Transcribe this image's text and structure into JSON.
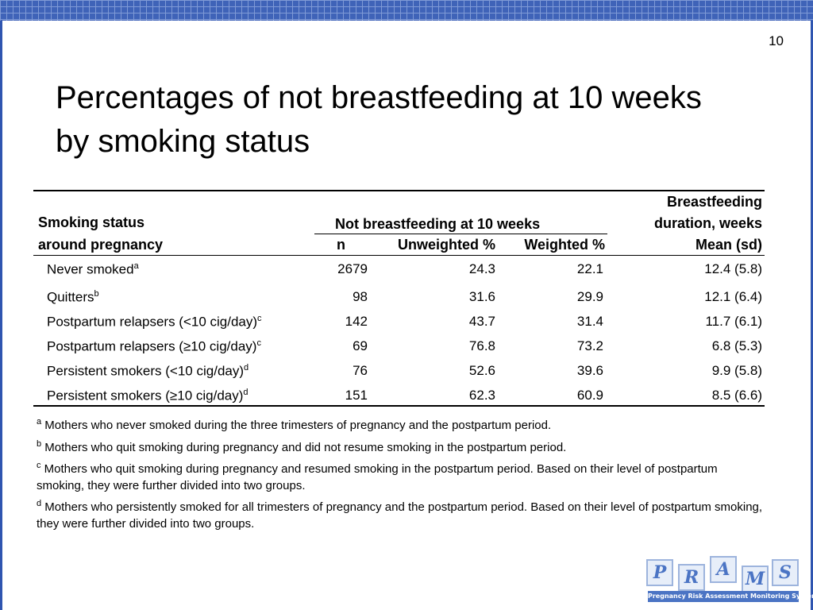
{
  "page_number": "10",
  "title": "Percentages of not breastfeeding at 10 weeks by smoking status",
  "table": {
    "header": {
      "row_label": [
        "Smoking status",
        "around pregnancy"
      ],
      "group": "Not breastfeeding at 10 weeks",
      "duration": [
        "Breastfeeding",
        "duration, weeks"
      ],
      "columns": [
        "n",
        "Unweighted %",
        "Weighted %",
        "Mean (sd)"
      ]
    },
    "rows": [
      {
        "label": "Never smoked",
        "note": "a",
        "cells": [
          "2679",
          "24.3",
          "22.1",
          "12.4 (5.8)"
        ]
      },
      {
        "label": "Quitters",
        "note": "b",
        "cells": [
          "98",
          "31.6",
          "29.9",
          "12.1 (6.4)"
        ]
      },
      {
        "label": "Postpartum relapsers (<10 cig/day)",
        "note": "c",
        "cells": [
          "142",
          "43.7",
          "31.4",
          "11.7 (6.1)"
        ]
      },
      {
        "label": "Postpartum relapsers (≥10 cig/day)",
        "note": "c",
        "cells": [
          "69",
          "76.8",
          "73.2",
          "6.8 (5.3)"
        ]
      },
      {
        "label": "Persistent smokers (<10 cig/day)",
        "note": "d",
        "cells": [
          "76",
          "52.6",
          "39.6",
          "9.9 (5.8)"
        ]
      },
      {
        "label": "Persistent smokers (≥10 cig/day)",
        "note": "d",
        "cells": [
          "151",
          "62.3",
          "60.9",
          "8.5 (6.6)"
        ]
      }
    ]
  },
  "footnotes": [
    {
      "mark": "a",
      "text": "Mothers who never smoked during the three trimesters of pregnancy and the postpartum period."
    },
    {
      "mark": "b",
      "text": "Mothers who quit smoking during pregnancy and did not resume smoking in the postpartum period."
    },
    {
      "mark": "c",
      "text": "Mothers who quit smoking during pregnancy and resumed smoking in the postpartum period. Based on their level of postpartum smoking, they were further divided into two groups."
    },
    {
      "mark": "d",
      "text": "Mothers who persistently smoked for all trimesters of pregnancy and the postpartum period. Based on their level of postpartum smoking, they were further divided into two groups."
    }
  ],
  "logo": {
    "caption": "Pregnancy Risk Assessment Monitoring System"
  }
}
